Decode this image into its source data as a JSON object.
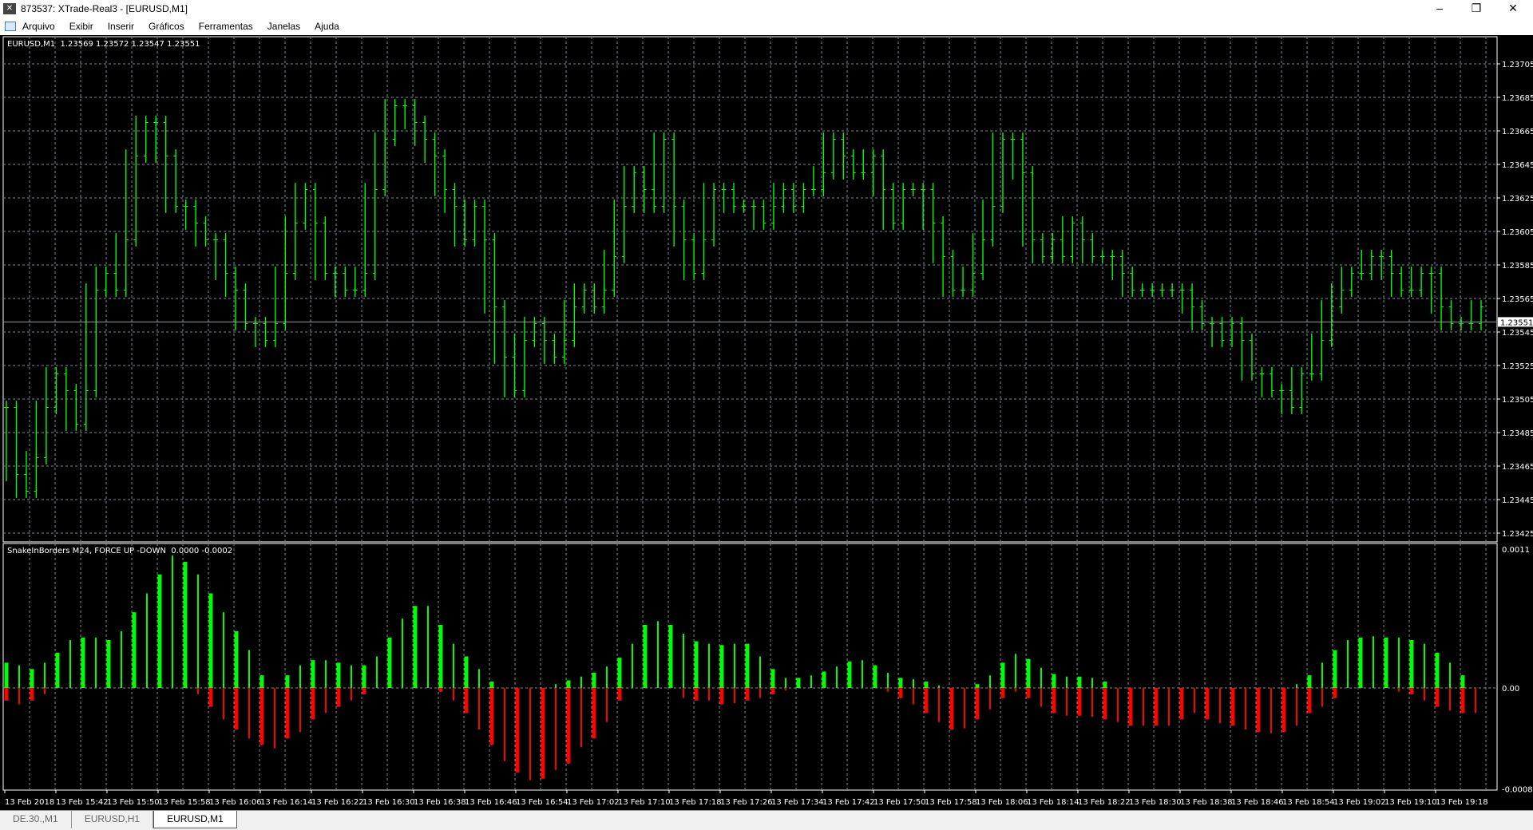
{
  "window": {
    "title": "873537: XTrade-Real3 - [EURUSD,M1]",
    "controls": {
      "minimize": "–",
      "maximize": "❐",
      "close": "✕"
    }
  },
  "menu": [
    "Arquivo",
    "Exibir",
    "Inserir",
    "Gráficos",
    "Ferramentas",
    "Janelas",
    "Ajuda"
  ],
  "price_panel": {
    "info": "EURUSD,M1  1.23569 1.23572 1.23547 1.23551",
    "current_price": "1.23551",
    "current_price_value": 1.23551,
    "y_ticks": [
      "1.23705",
      "1.23685",
      "1.23665",
      "1.23645",
      "1.23625",
      "1.23605",
      "1.23585",
      "1.23565",
      "1.23545",
      "1.23525",
      "1.23505",
      "1.23485",
      "1.23465",
      "1.23445",
      "1.23425"
    ],
    "bar_color": "#00ff00",
    "close": [
      1.235,
      1.2346,
      1.2345,
      1.2347,
      1.235,
      1.2352,
      1.2351,
      1.2349,
      1.2351,
      1.2357,
      1.2358,
      1.2357,
      1.236,
      1.2365,
      1.2367,
      1.2367,
      1.2365,
      1.2362,
      1.2362,
      1.2361,
      1.236,
      1.236,
      1.2358,
      1.2357,
      1.2355,
      1.2355,
      1.2354,
      1.2355,
      1.2358,
      1.2361,
      1.2363,
      1.2361,
      1.2358,
      1.2358,
      1.2357,
      1.2357,
      1.2358,
      1.2363,
      1.2366,
      1.2368,
      1.2368,
      1.2367,
      1.2366,
      1.2365,
      1.2363,
      1.2362,
      1.236,
      1.2362,
      1.236,
      1.2356,
      1.2353,
      1.2351,
      1.2354,
      1.2355,
      1.2354,
      1.2353,
      1.2354,
      1.2356,
      1.2357,
      1.2356,
      1.2357,
      1.2359,
      1.2362,
      1.2364,
      1.2363,
      1.2362,
      1.2366,
      1.2362,
      1.236,
      1.2358,
      1.236,
      1.2363,
      1.2363,
      1.2362,
      1.2362,
      1.2362,
      1.2361,
      1.2362,
      1.2363,
      1.2362,
      1.2363,
      1.2363,
      1.2364,
      1.2366,
      1.2365,
      1.2364,
      1.2364,
      1.2365,
      1.2363,
      1.2361,
      1.2363,
      1.2363,
      1.2363,
      1.2361,
      1.2359,
      1.2357,
      1.2357,
      1.2358,
      1.236,
      1.2362,
      1.2366,
      1.2366,
      1.2364,
      1.236,
      1.2359,
      1.236,
      1.2359,
      1.2361,
      1.236,
      1.2359,
      1.2359,
      1.2359,
      1.2358,
      1.2357,
      1.2357,
      1.2357,
      1.2357,
      1.2357,
      1.2357,
      1.2356,
      1.2355,
      1.2355,
      1.2354,
      1.2355,
      1.2354,
      1.2352,
      1.2352,
      1.2351,
      1.2351,
      1.235,
      1.2352,
      1.2352,
      1.2354,
      1.2356,
      1.2357,
      1.2358,
      1.2358,
      1.2359,
      1.2359,
      1.2358,
      1.2357,
      1.2357,
      1.2358,
      1.2358,
      1.2356,
      1.2355,
      1.2355,
      1.2355,
      1.2356
    ]
  },
  "indicator_panel": {
    "info": "SnakeInBorders M24, FORCE UP -DOWN  0.0000 -0.0002",
    "y_ticks": [
      "0.0011",
      "0.00",
      "-0.0008"
    ],
    "up_color": "#00ff00",
    "down_color": "#ff0000",
    "up": [
      0.0002,
      0.00018,
      0.00015,
      0.0002,
      0.00028,
      0.00038,
      0.0004,
      0.0004,
      0.00038,
      0.00045,
      0.0006,
      0.00075,
      0.0009,
      0.00105,
      0.001,
      0.0009,
      0.00075,
      0.0006,
      0.00045,
      0.0003,
      0.0001,
      0,
      0.0001,
      0.00018,
      0.00022,
      0.00022,
      0.0002,
      0.00018,
      0.00018,
      0.00025,
      0.0004,
      0.00055,
      0.00065,
      0.00065,
      0.0005,
      0.00035,
      0.00025,
      0.00015,
      5e-05,
      0,
      0,
      0,
      0,
      3e-05,
      6e-05,
      9e-05,
      0.00012,
      0.00017,
      0.00024,
      0.00035,
      0.0005,
      0.00053,
      0.0005,
      0.00043,
      0.00037,
      0.00035,
      0.00034,
      0.00035,
      0.00035,
      0.00025,
      0.00015,
      8e-05,
      8e-05,
      0.0001,
      0.00013,
      0.00017,
      0.00021,
      0.00022,
      0.00018,
      0.00012,
      8e-05,
      7e-05,
      5e-05,
      2e-05,
      0,
      0,
      3e-05,
      0.0001,
      0.0002,
      0.00027,
      0.00023,
      0.00016,
      0.00011,
      9e-05,
      9e-05,
      8e-05,
      5e-05,
      0,
      0,
      0,
      0,
      0,
      0,
      0,
      0,
      0,
      0,
      0,
      0,
      0,
      0,
      3e-05,
      0.0001,
      0.0002,
      0.0003,
      0.00038,
      0.0004,
      0.00041,
      0.0004,
      0.0004,
      0.00038,
      0.00035,
      0.00028,
      0.0002,
      0.0001,
      0
    ],
    "down": [
      -0.0001,
      -0.00013,
      -0.0001,
      -5e-05,
      0,
      0,
      0,
      0,
      0,
      0,
      0,
      0,
      0,
      0,
      0,
      -5e-05,
      -0.00015,
      -0.00025,
      -0.00033,
      -0.0004,
      -0.00045,
      -0.00048,
      -0.0004,
      -0.00035,
      -0.00025,
      -0.0002,
      -0.00015,
      -0.0001,
      -5e-05,
      0,
      0,
      0,
      0,
      0,
      -3e-05,
      -0.0001,
      -0.0002,
      -0.00033,
      -0.00045,
      -0.00058,
      -0.00067,
      -0.00073,
      -0.00072,
      -0.00065,
      -0.0006,
      -0.00047,
      -0.0004,
      -0.00027,
      -0.0001,
      0,
      0,
      0,
      0,
      -8e-05,
      -0.0001,
      -0.0001,
      -0.00013,
      -0.00012,
      -0.0001,
      -8e-05,
      -5e-05,
      -2e-05,
      0,
      0,
      0,
      0,
      0,
      0,
      0,
      -3e-05,
      -8e-05,
      -0.00013,
      -0.0002,
      -0.00027,
      -0.00033,
      -0.00032,
      -0.00025,
      -0.00017,
      -8e-05,
      -3e-05,
      -8e-05,
      -0.00015,
      -0.0002,
      -0.00022,
      -0.00022,
      -0.00023,
      -0.00025,
      -0.00027,
      -0.0003,
      -0.0003,
      -0.0003,
      -0.0003,
      -0.00025,
      -0.0002,
      -0.00025,
      -0.00028,
      -0.0003,
      -0.00033,
      -0.00035,
      -0.00036,
      -0.00035,
      -0.0003,
      -0.0002,
      -0.00015,
      -8e-05,
      0,
      0,
      0,
      0,
      -3e-05,
      -5e-05,
      -0.0001,
      -0.00015,
      -0.00018,
      -0.0002,
      -0.0002
    ]
  },
  "time_axis": [
    "13 Feb 2018",
    "13 Feb 15:42",
    "13 Feb 15:50",
    "13 Feb 15:58",
    "13 Feb 16:06",
    "13 Feb 16:14",
    "13 Feb 16:22",
    "13 Feb 16:30",
    "13 Feb 16:38",
    "13 Feb 16:46",
    "13 Feb 16:54",
    "13 Feb 17:02",
    "13 Feb 17:10",
    "13 Feb 17:18",
    "13 Feb 17:26",
    "13 Feb 17:34",
    "13 Feb 17:42",
    "13 Feb 17:50",
    "13 Feb 17:58",
    "13 Feb 18:06",
    "13 Feb 18:14",
    "13 Feb 18:22",
    "13 Feb 18:30",
    "13 Feb 18:38",
    "13 Feb 18:46",
    "13 Feb 18:54",
    "13 Feb 19:02",
    "13 Feb 19:10",
    "13 Feb 19:18"
  ],
  "tabs": [
    {
      "label": "DE.30.,M1",
      "active": false
    },
    {
      "label": "EURUSD,H1",
      "active": false
    },
    {
      "label": "EURUSD,M1",
      "active": true
    }
  ]
}
